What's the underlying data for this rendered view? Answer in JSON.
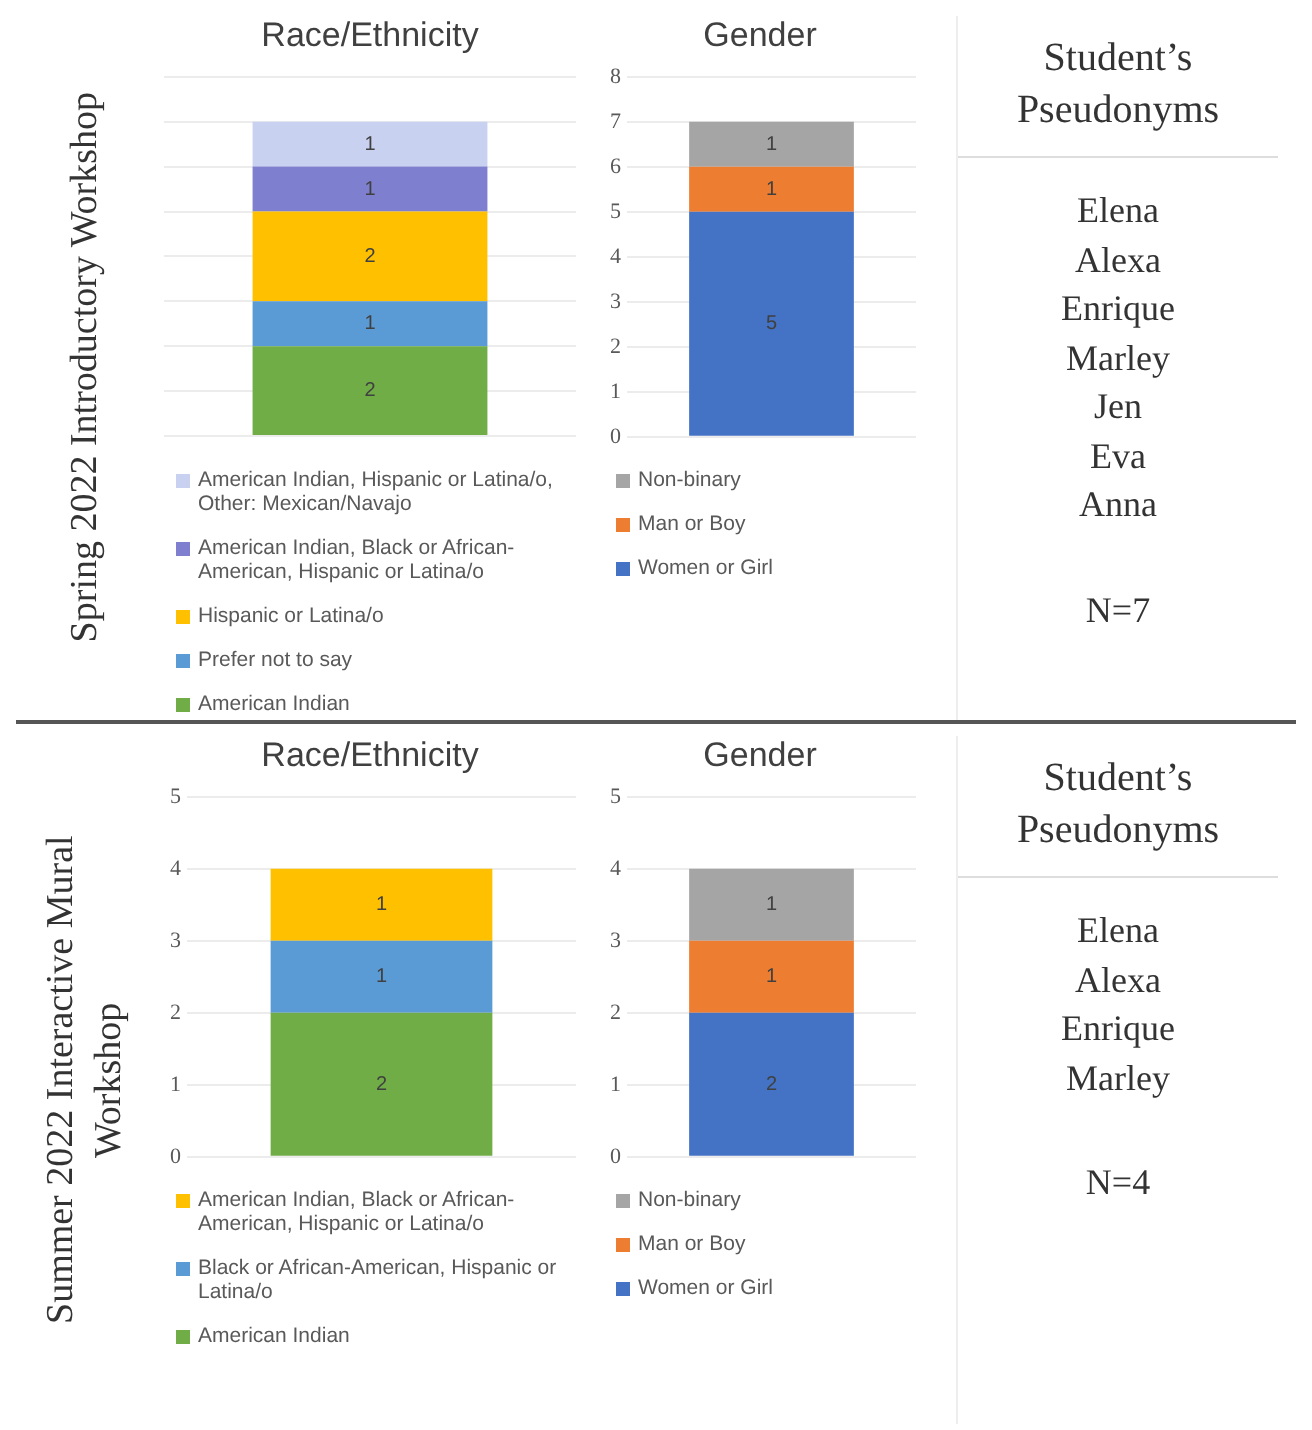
{
  "chart_data": [
    {
      "type": "bar",
      "title": "Race/Ethnicity",
      "ylabel": "Spring 2022 Introductory Workshop",
      "categories": [
        null
      ],
      "stacked": true,
      "ylim": [
        0,
        8
      ],
      "yticks": [
        0,
        1,
        2,
        3,
        4,
        5,
        6,
        7,
        8
      ],
      "tick_labels": false,
      "grid": "y",
      "legend": "bottom",
      "data_labels": true,
      "series": [
        {
          "name": "American Indian",
          "color": "#70ad47",
          "values": [
            2
          ]
        },
        {
          "name": "Prefer not to say",
          "color": "#5b9bd5",
          "values": [
            1
          ]
        },
        {
          "name": "Hispanic or Latina/o",
          "color": "#ffc000",
          "values": [
            2
          ]
        },
        {
          "name": "American Indian, Black or African-American, Hispanic or Latina/o",
          "color": "#7f7fcf",
          "values": [
            1
          ]
        },
        {
          "name": "American Indian, Hispanic or Latina/o, Other: Mexican/Navajo",
          "color": "#c9d1f0",
          "values": [
            1
          ]
        }
      ]
    },
    {
      "type": "bar",
      "title": "Gender",
      "categories": [
        null
      ],
      "stacked": true,
      "ylim": [
        0,
        8
      ],
      "yticks": [
        0,
        1,
        2,
        3,
        4,
        5,
        6,
        7,
        8
      ],
      "tick_labels": "y",
      "grid": "y",
      "legend": "bottom",
      "data_labels": true,
      "series": [
        {
          "name": "Women or Girl",
          "color": "#4472c4",
          "values": [
            5
          ]
        },
        {
          "name": "Man or Boy",
          "color": "#ed7d31",
          "values": [
            1
          ]
        },
        {
          "name": "Non-binary",
          "color": "#a5a5a5",
          "values": [
            1
          ]
        }
      ]
    },
    {
      "type": "other",
      "title": "Student’s Pseudonyms",
      "annotations": [
        "Elena",
        "Alexa",
        "Enrique",
        "Marley",
        "Jen",
        "Eva",
        "Anna",
        "N=7"
      ]
    },
    {
      "type": "bar",
      "title": "Race/Ethnicity",
      "ylabel": "Summer 2022 Interactive Mural Workshop",
      "categories": [
        null
      ],
      "stacked": true,
      "ylim": [
        0,
        5
      ],
      "yticks": [
        0,
        1,
        2,
        3,
        4,
        5
      ],
      "tick_labels": "y",
      "grid": "y",
      "legend": "bottom",
      "data_labels": true,
      "series": [
        {
          "name": "American Indian",
          "color": "#70ad47",
          "values": [
            2
          ]
        },
        {
          "name": "Black or African-American, Hispanic or Latina/o",
          "color": "#5b9bd5",
          "values": [
            1
          ]
        },
        {
          "name": "American Indian, Black or African-American, Hispanic or Latina/o",
          "color": "#ffc000",
          "values": [
            1
          ]
        }
      ]
    },
    {
      "type": "bar",
      "title": "Gender",
      "categories": [
        null
      ],
      "stacked": true,
      "ylim": [
        0,
        5
      ],
      "yticks": [
        0,
        1,
        2,
        3,
        4,
        5
      ],
      "tick_labels": "y",
      "grid": "y",
      "legend": "bottom",
      "data_labels": true,
      "series": [
        {
          "name": "Women or Girl",
          "color": "#4472c4",
          "values": [
            2
          ]
        },
        {
          "name": "Man or Boy",
          "color": "#ed7d31",
          "values": [
            1
          ]
        },
        {
          "name": "Non-binary",
          "color": "#a5a5a5",
          "values": [
            1
          ]
        }
      ]
    },
    {
      "type": "other",
      "title": "Student’s Pseudonyms",
      "annotations": [
        "Elena",
        "Alexa",
        "Enrique",
        "Marley",
        "N=4"
      ]
    }
  ]
}
